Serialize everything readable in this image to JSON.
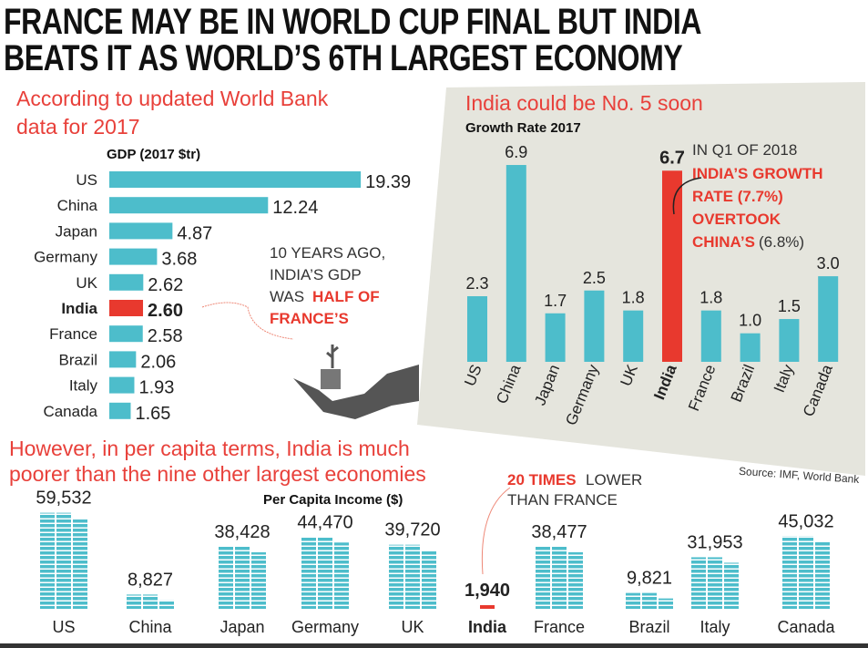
{
  "headline": [
    "FRANCE MAY BE IN WORLD CUP FINAL BUT INDIA",
    "BEATS IT AS WORLD’S 6TH LARGEST ECONOMY"
  ],
  "colors": {
    "bar": "#4dbdcb",
    "highlight": "#e8392e",
    "panel": "#e5e5dd",
    "red_text": "#e8403a"
  },
  "chart_data": [
    {
      "type": "bar",
      "orientation": "horizontal",
      "title": "GDP (2017 $tr)",
      "intro": [
        "According to updated World Bank",
        "data for 2017"
      ],
      "categories": [
        "US",
        "China",
        "Japan",
        "Germany",
        "UK",
        "India",
        "France",
        "Brazil",
        "Italy",
        "Canada"
      ],
      "values": [
        19.39,
        12.24,
        4.87,
        3.68,
        2.62,
        2.6,
        2.58,
        2.06,
        1.93,
        1.65
      ],
      "labels": [
        "19.39",
        "12.24",
        "4.87",
        "3.68",
        "2.62",
        "2.60",
        "2.58",
        "2.06",
        "1.93",
        "1.65"
      ],
      "highlight": "India",
      "annotation": {
        "line1": "10 YEARS AGO,",
        "line2": "INDIA’S GDP",
        "line3a": "WAS ",
        "line3b": "HALF OF",
        "line4": "FRANCE’S"
      }
    },
    {
      "type": "bar",
      "title": "India could be No. 5 soon",
      "subtitle": "Growth Rate 2017",
      "categories": [
        "US",
        "China",
        "Japan",
        "Germany",
        "UK",
        "India",
        "France",
        "Brazil",
        "Italy",
        "Canada"
      ],
      "values": [
        2.3,
        6.9,
        1.7,
        2.5,
        1.8,
        6.7,
        1.8,
        1.0,
        1.5,
        3.0
      ],
      "labels": [
        "2.3",
        "6.9",
        "1.7",
        "2.5",
        "1.8",
        "6.7",
        "1.8",
        "1.0",
        "1.5",
        "3.0"
      ],
      "highlight": "India",
      "annotation": {
        "line1": "IN Q1 OF 2018",
        "line2": "INDIA’S GROWTH",
        "line3": "RATE (7.7%)",
        "line4": "OVERTOOK",
        "line5a": "CHINA’S",
        "line5b": " (6.8%)"
      }
    },
    {
      "type": "bar",
      "title": "Per Capita Income ($)",
      "intro": [
        "However, in per capita terms, India is much",
        "poorer than the nine other largest economies"
      ],
      "categories": [
        "US",
        "China",
        "Japan",
        "Germany",
        "UK",
        "India",
        "France",
        "Brazil",
        "Italy",
        "Canada"
      ],
      "values": [
        59532,
        8827,
        38428,
        44470,
        39720,
        1940,
        38477,
        9821,
        31953,
        45032
      ],
      "labels": [
        "59,532",
        "8,827",
        "38,428",
        "44,470",
        "39,720",
        "1,940",
        "38,477",
        "9,821",
        "31,953",
        "45,032"
      ],
      "highlight": "India",
      "annotation": {
        "a": "20 TIMES",
        "b": " LOWER",
        "c": "THAN FRANCE"
      }
    }
  ],
  "source": "Source: IMF, World Bank"
}
